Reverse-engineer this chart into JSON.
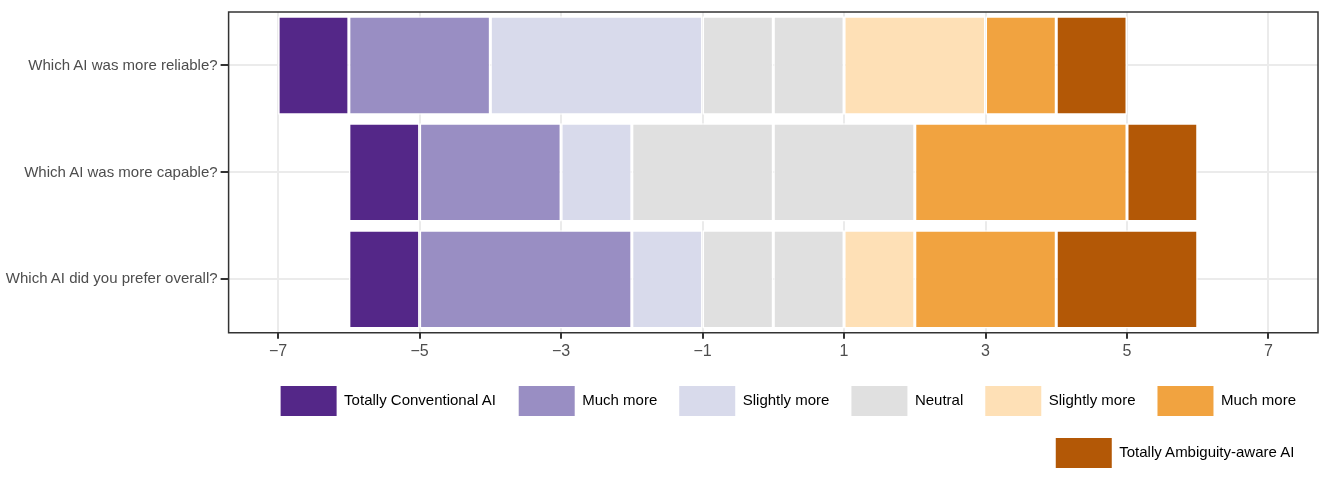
{
  "chart_data": {
    "type": "bar",
    "orientation": "horizontal",
    "stacked": true,
    "categories": [
      "Which AI was more reliable?",
      "Which AI was more capable?",
      "Which AI did you prefer overall?"
    ],
    "series": [
      {
        "color": "#e0e0e0",
        "values": [
          -1,
          -2,
          -1
        ]
      },
      {
        "name": "Slightly more",
        "color": "#d8daeb",
        "values": [
          -3,
          -1,
          -1
        ]
      },
      {
        "name": "Much more",
        "color": "#998ec3",
        "values": [
          -2,
          -2,
          -3
        ]
      },
      {
        "name": "Totally Conventional AI",
        "color": "#542788",
        "values": [
          -1,
          -1,
          -1
        ]
      },
      {
        "name": "Neutral",
        "color": "#e0e0e0",
        "values": [
          1,
          2,
          1
        ]
      },
      {
        "name": "Slightly more",
        "color": "#fee0b6",
        "values": [
          2,
          0,
          1
        ]
      },
      {
        "name": "Much more",
        "color": "#f1a340",
        "values": [
          1,
          3,
          2
        ]
      },
      {
        "name": "Totally Ambiguity-aware AI",
        "color": "#b35806",
        "values": [
          1,
          1,
          2
        ]
      }
    ],
    "xlim": [
      -7.7,
      7.7
    ],
    "xticks": [
      {
        "value": -7,
        "label": "−7"
      },
      {
        "value": -5,
        "label": "−5"
      },
      {
        "value": -3,
        "label": "−3"
      },
      {
        "value": -1,
        "label": "−1"
      },
      1,
      3,
      5,
      7
    ],
    "grid": true,
    "legend": "bottom"
  }
}
